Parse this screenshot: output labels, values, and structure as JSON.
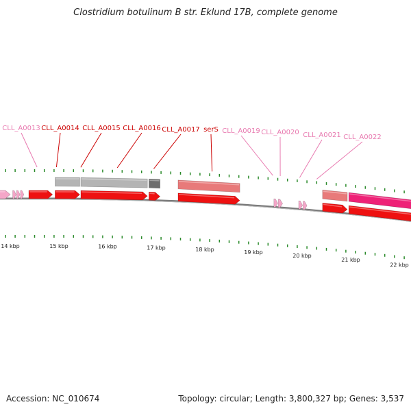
{
  "title": "Clostridium botulinum B str. Eklund 17B, complete genome",
  "footer": {
    "accession": "Accession: NC_010674",
    "summary": "Topology: circular; Length: 3,800,327 bp; Genes: 3,537"
  },
  "colors": {
    "cds": "#ee1111",
    "cds_highlight": "#ee2277",
    "light_cds": "#f4a6c8",
    "rna": "#e87a7a",
    "grey": "#b4b4b4",
    "dark_grey": "#6e6e6e",
    "tick": "#2a8a2a",
    "label_red": "#cc0000",
    "label_pink": "#e87ab0",
    "backbone": "#7a7a7a"
  },
  "axis": {
    "unit": "kbp",
    "view_start_kbp": 13.5,
    "view_end_kbp": 22.5
  },
  "scale_labels": [
    {
      "text": "14 kbp",
      "kbp": 14
    },
    {
      "text": "15 kbp",
      "kbp": 15
    },
    {
      "text": "16 kbp",
      "kbp": 16
    },
    {
      "text": "17 kbp",
      "kbp": 17
    },
    {
      "text": "18 kbp",
      "kbp": 18
    },
    {
      "text": "19 kbp",
      "kbp": 19
    },
    {
      "text": "20 kbp",
      "kbp": 20
    },
    {
      "text": "21 kbp",
      "kbp": 21
    },
    {
      "text": "22 kbp",
      "kbp": 22
    }
  ],
  "gene_labels": [
    {
      "text": "CLL_A0013",
      "color": "label_pink",
      "anchor_kbp": 14.55
    },
    {
      "text": "CLL_A0014",
      "color": "label_red",
      "anchor_kbp": 14.95
    },
    {
      "text": "CLL_A0015",
      "color": "label_red",
      "anchor_kbp": 15.45
    },
    {
      "text": "CLL_A0016",
      "color": "label_red",
      "anchor_kbp": 16.2
    },
    {
      "text": "CLL_A0017",
      "color": "label_red",
      "anchor_kbp": 16.95
    },
    {
      "text": "serS",
      "color": "label_red",
      "anchor_kbp": 18.15
    },
    {
      "text": "CLL_A0019",
      "color": "label_pink",
      "anchor_kbp": 19.4
    },
    {
      "text": "CLL_A0020",
      "color": "label_pink",
      "anchor_kbp": 19.55
    },
    {
      "text": "CLL_A0021",
      "color": "label_pink",
      "anchor_kbp": 19.95
    },
    {
      "text": "CLL_A0022",
      "color": "label_pink",
      "anchor_kbp": 20.3
    }
  ],
  "features": [
    {
      "lane": "gene",
      "start_kbp": 13.3,
      "end_kbp": 14.0,
      "color": "light_cds",
      "arrow": true
    },
    {
      "lane": "gene",
      "start_kbp": 14.05,
      "end_kbp": 14.12,
      "color": "light_cds",
      "arrow": true
    },
    {
      "lane": "gene",
      "start_kbp": 14.13,
      "end_kbp": 14.2,
      "color": "light_cds",
      "arrow": true
    },
    {
      "lane": "gene",
      "start_kbp": 14.21,
      "end_kbp": 14.28,
      "color": "light_cds",
      "arrow": true
    },
    {
      "lane": "gene",
      "start_kbp": 14.38,
      "end_kbp": 14.87,
      "color": "cds",
      "arrow": true
    },
    {
      "lane": "gene",
      "start_kbp": 14.92,
      "end_kbp": 15.43,
      "color": "cds",
      "arrow": true
    },
    {
      "lane": "gene",
      "start_kbp": 15.45,
      "end_kbp": 16.82,
      "color": "cds",
      "arrow": true
    },
    {
      "lane": "gene",
      "start_kbp": 16.85,
      "end_kbp": 17.08,
      "color": "cds",
      "arrow": true
    },
    {
      "lane": "gene",
      "start_kbp": 17.45,
      "end_kbp": 18.72,
      "color": "cds",
      "arrow": true
    },
    {
      "lane": "gene",
      "start_kbp": 19.42,
      "end_kbp": 19.5,
      "color": "light_cds",
      "arrow": true
    },
    {
      "lane": "gene",
      "start_kbp": 19.51,
      "end_kbp": 19.6,
      "color": "light_cds",
      "arrow": true
    },
    {
      "lane": "gene",
      "start_kbp": 19.93,
      "end_kbp": 20.01,
      "color": "light_cds",
      "arrow": true
    },
    {
      "lane": "gene",
      "start_kbp": 20.02,
      "end_kbp": 20.1,
      "color": "light_cds",
      "arrow": true
    },
    {
      "lane": "gene",
      "start_kbp": 20.42,
      "end_kbp": 20.93,
      "color": "cds",
      "arrow": true
    },
    {
      "lane": "gene",
      "start_kbp": 20.96,
      "end_kbp": 22.6,
      "color": "cds",
      "arrow": false
    },
    {
      "lane": "upper",
      "start_kbp": 14.92,
      "end_kbp": 15.43,
      "color": "grey",
      "arrow": false
    },
    {
      "lane": "upper",
      "start_kbp": 15.45,
      "end_kbp": 16.82,
      "color": "grey",
      "arrow": false
    },
    {
      "lane": "upper",
      "start_kbp": 16.85,
      "end_kbp": 17.08,
      "color": "dark_grey",
      "arrow": false
    },
    {
      "lane": "upper",
      "start_kbp": 17.45,
      "end_kbp": 18.72,
      "color": "rna",
      "arrow": false
    },
    {
      "lane": "upper",
      "start_kbp": 20.42,
      "end_kbp": 20.93,
      "color": "rna",
      "arrow": false
    },
    {
      "lane": "upper",
      "start_kbp": 20.96,
      "end_kbp": 22.6,
      "color": "cds_highlight",
      "arrow": false
    }
  ]
}
